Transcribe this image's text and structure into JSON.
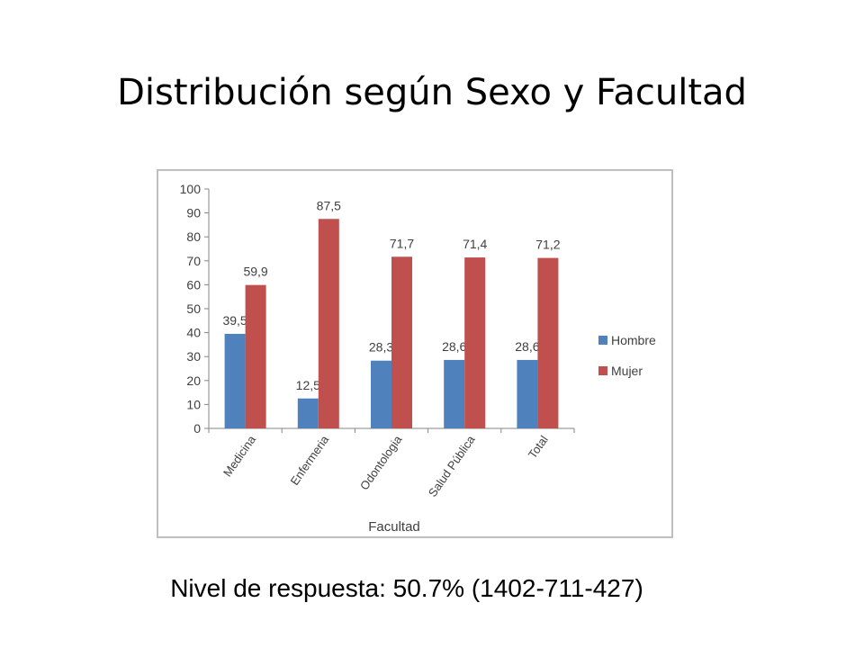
{
  "slide": {
    "title": "Distribución según Sexo y Facultad",
    "footer": "Nivel de respuesta: 50.7% (1402-711-427)"
  },
  "colors": {
    "hombre": "#4f81bd",
    "mujer": "#c0504d",
    "axis": "#868686",
    "frame": "#bfbfbf",
    "text": "#404040"
  },
  "chart_data": {
    "type": "bar",
    "title": "",
    "xlabel": "Facultad",
    "ylabel": "",
    "ylim": [
      0,
      100
    ],
    "yticks": [
      "0",
      "10",
      "20",
      "30",
      "40",
      "50",
      "60",
      "70",
      "80",
      "90",
      "100"
    ],
    "grid": false,
    "legend_position": "right",
    "categories": [
      "Medicina",
      "Enfermeria",
      "Odontologia",
      "Salud Pública",
      "Total"
    ],
    "series": [
      {
        "name": "Hombre",
        "values": [
          39.5,
          12.5,
          28.3,
          28.6,
          28.6
        ],
        "labels": [
          "39,5",
          "12,5",
          "28,3",
          "28,6",
          "28,6"
        ]
      },
      {
        "name": "Mujer",
        "values": [
          59.9,
          87.5,
          71.7,
          71.4,
          71.2
        ],
        "labels": [
          "59,9",
          "87,5",
          "71,7",
          "71,4",
          "71,2"
        ]
      }
    ]
  }
}
